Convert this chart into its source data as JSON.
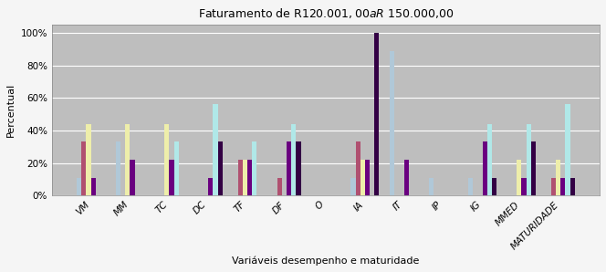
{
  "title": "Faturamento de R$120.001,00 a R$ 150.000,00",
  "xlabel": "Variáveis desempenho e maturidade",
  "ylabel": "Percentual",
  "categories": [
    "VM",
    "MM",
    "TC",
    "DC",
    "TF",
    "DF",
    "O",
    "IA",
    "IT",
    "IP",
    "IG",
    "MMED",
    "MATURIDADE"
  ],
  "series": {
    "s1_lightblue": [
      11,
      33,
      0,
      0,
      0,
      0,
      0,
      11,
      89,
      11,
      11,
      0,
      0
    ],
    "s2_pink": [
      33,
      0,
      0,
      0,
      22,
      11,
      0,
      33,
      0,
      0,
      0,
      0,
      11
    ],
    "s3_yellow": [
      44,
      44,
      44,
      0,
      22,
      0,
      0,
      22,
      0,
      0,
      0,
      22,
      22
    ],
    "s4_purple": [
      11,
      22,
      22,
      11,
      22,
      33,
      0,
      22,
      22,
      0,
      33,
      11,
      11
    ],
    "s5_ltcyan": [
      0,
      0,
      33,
      56,
      33,
      44,
      0,
      0,
      0,
      0,
      44,
      44,
      56
    ],
    "s6_darkpur": [
      0,
      0,
      0,
      33,
      0,
      33,
      0,
      100,
      0,
      0,
      11,
      33,
      11
    ]
  },
  "colors": [
    "#b0c8d8",
    "#b05070",
    "#eeeeaa",
    "#6a0080",
    "#b0e8e8",
    "#330044"
  ],
  "ylim": [
    0,
    105
  ],
  "yticks": [
    0,
    20,
    40,
    60,
    80,
    100
  ],
  "ytick_labels": [
    "0%",
    "20%",
    "40%",
    "60%",
    "80%",
    "100%"
  ],
  "bar_width": 0.12,
  "bg_color": "#bebebe",
  "fig_bg": "#f5f5f5",
  "grid_color": "#ffffff",
  "title_fontsize": 9,
  "axis_fontsize": 8,
  "tick_fontsize": 7.5
}
